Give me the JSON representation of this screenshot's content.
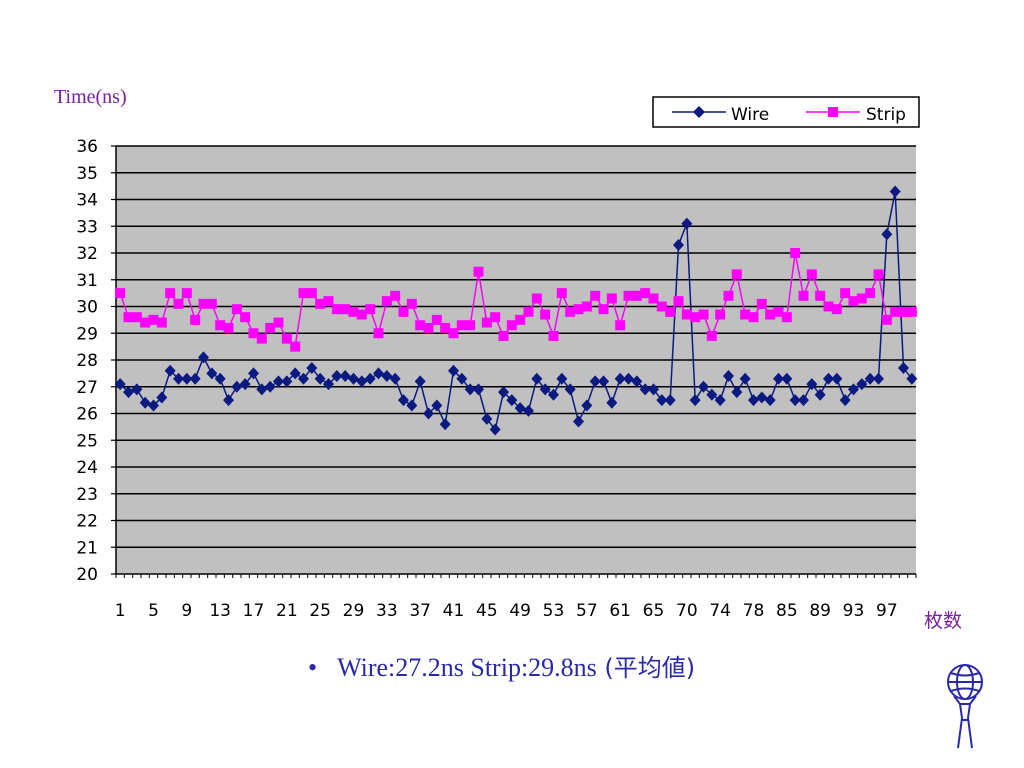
{
  "labels": {
    "y_unit": "Time(ns)",
    "x_unit": "枚数",
    "bullet": "•",
    "summary": "Wire:27.2ns Strip:29.8ns",
    "summary_tail": " (平均値)"
  },
  "colors": {
    "plot_bg": "#c0c0c0",
    "wire": "#0a1a80",
    "strip": "#ff00ff",
    "text_accent": "#7a1fa2",
    "summary": "#2a2aa8"
  },
  "chart_data": {
    "type": "line",
    "ylim": [
      20,
      36
    ],
    "y_ticks": [
      20,
      21,
      22,
      23,
      24,
      25,
      26,
      27,
      28,
      29,
      30,
      31,
      32,
      33,
      34,
      35,
      36
    ],
    "x_tick_labels": [
      "1",
      "5",
      "9",
      "13",
      "17",
      "21",
      "25",
      "29",
      "33",
      "37",
      "41",
      "45",
      "49",
      "53",
      "57",
      "61",
      "65",
      "70",
      "74",
      "78",
      "85",
      "89",
      "93",
      "97"
    ],
    "grid": true,
    "legend_position": "top-right",
    "series": [
      {
        "name": "Wire",
        "marker": "diamond",
        "values": [
          27.1,
          26.8,
          26.9,
          26.4,
          26.3,
          26.6,
          27.6,
          27.3,
          27.3,
          27.3,
          28.1,
          27.5,
          27.3,
          26.5,
          27.0,
          27.1,
          27.5,
          26.9,
          27.0,
          27.2,
          27.2,
          27.5,
          27.3,
          27.7,
          27.3,
          27.1,
          27.4,
          27.4,
          27.3,
          27.2,
          27.3,
          27.5,
          27.4,
          27.3,
          26.5,
          26.3,
          27.2,
          26.0,
          26.3,
          25.6,
          27.6,
          27.3,
          26.9,
          26.9,
          25.8,
          25.4,
          26.8,
          26.5,
          26.2,
          26.1,
          27.3,
          26.9,
          26.7,
          27.3,
          26.9,
          25.7,
          26.3,
          27.2,
          27.2,
          26.4,
          27.3,
          27.3,
          27.2,
          26.9,
          26.9,
          26.5,
          26.5,
          32.3,
          33.1,
          26.5,
          27.0,
          26.7,
          26.5,
          27.4,
          26.8,
          27.3,
          26.5,
          26.6,
          26.5,
          27.3,
          27.3,
          26.5,
          26.5,
          27.1,
          26.7,
          27.3,
          27.3,
          26.5,
          26.9,
          27.1,
          27.3,
          27.3,
          32.7,
          34.3,
          27.7,
          27.3
        ]
      },
      {
        "name": "Strip",
        "marker": "square",
        "values": [
          30.5,
          29.6,
          29.6,
          29.4,
          29.5,
          29.4,
          30.5,
          30.1,
          30.5,
          29.5,
          30.1,
          30.1,
          29.3,
          29.2,
          29.9,
          29.6,
          29.0,
          28.8,
          29.2,
          29.4,
          28.8,
          28.5,
          30.5,
          30.5,
          30.1,
          30.2,
          29.9,
          29.9,
          29.8,
          29.7,
          29.9,
          29.0,
          30.2,
          30.4,
          29.8,
          30.1,
          29.3,
          29.2,
          29.5,
          29.2,
          29.0,
          29.3,
          29.3,
          31.3,
          29.4,
          29.6,
          28.9,
          29.3,
          29.5,
          29.8,
          30.3,
          29.7,
          28.9,
          30.5,
          29.8,
          29.9,
          30.0,
          30.4,
          29.9,
          30.3,
          29.3,
          30.4,
          30.4,
          30.5,
          30.3,
          30.0,
          29.8,
          30.2,
          29.7,
          29.6,
          29.7,
          28.9,
          29.7,
          30.4,
          31.2,
          29.7,
          29.6,
          30.1,
          29.7,
          29.8,
          29.6,
          32.0,
          30.4,
          31.2,
          30.4,
          30.0,
          29.9,
          30.5,
          30.2,
          30.3,
          30.5,
          31.2,
          29.5,
          29.8,
          29.8,
          29.8
        ]
      }
    ]
  }
}
